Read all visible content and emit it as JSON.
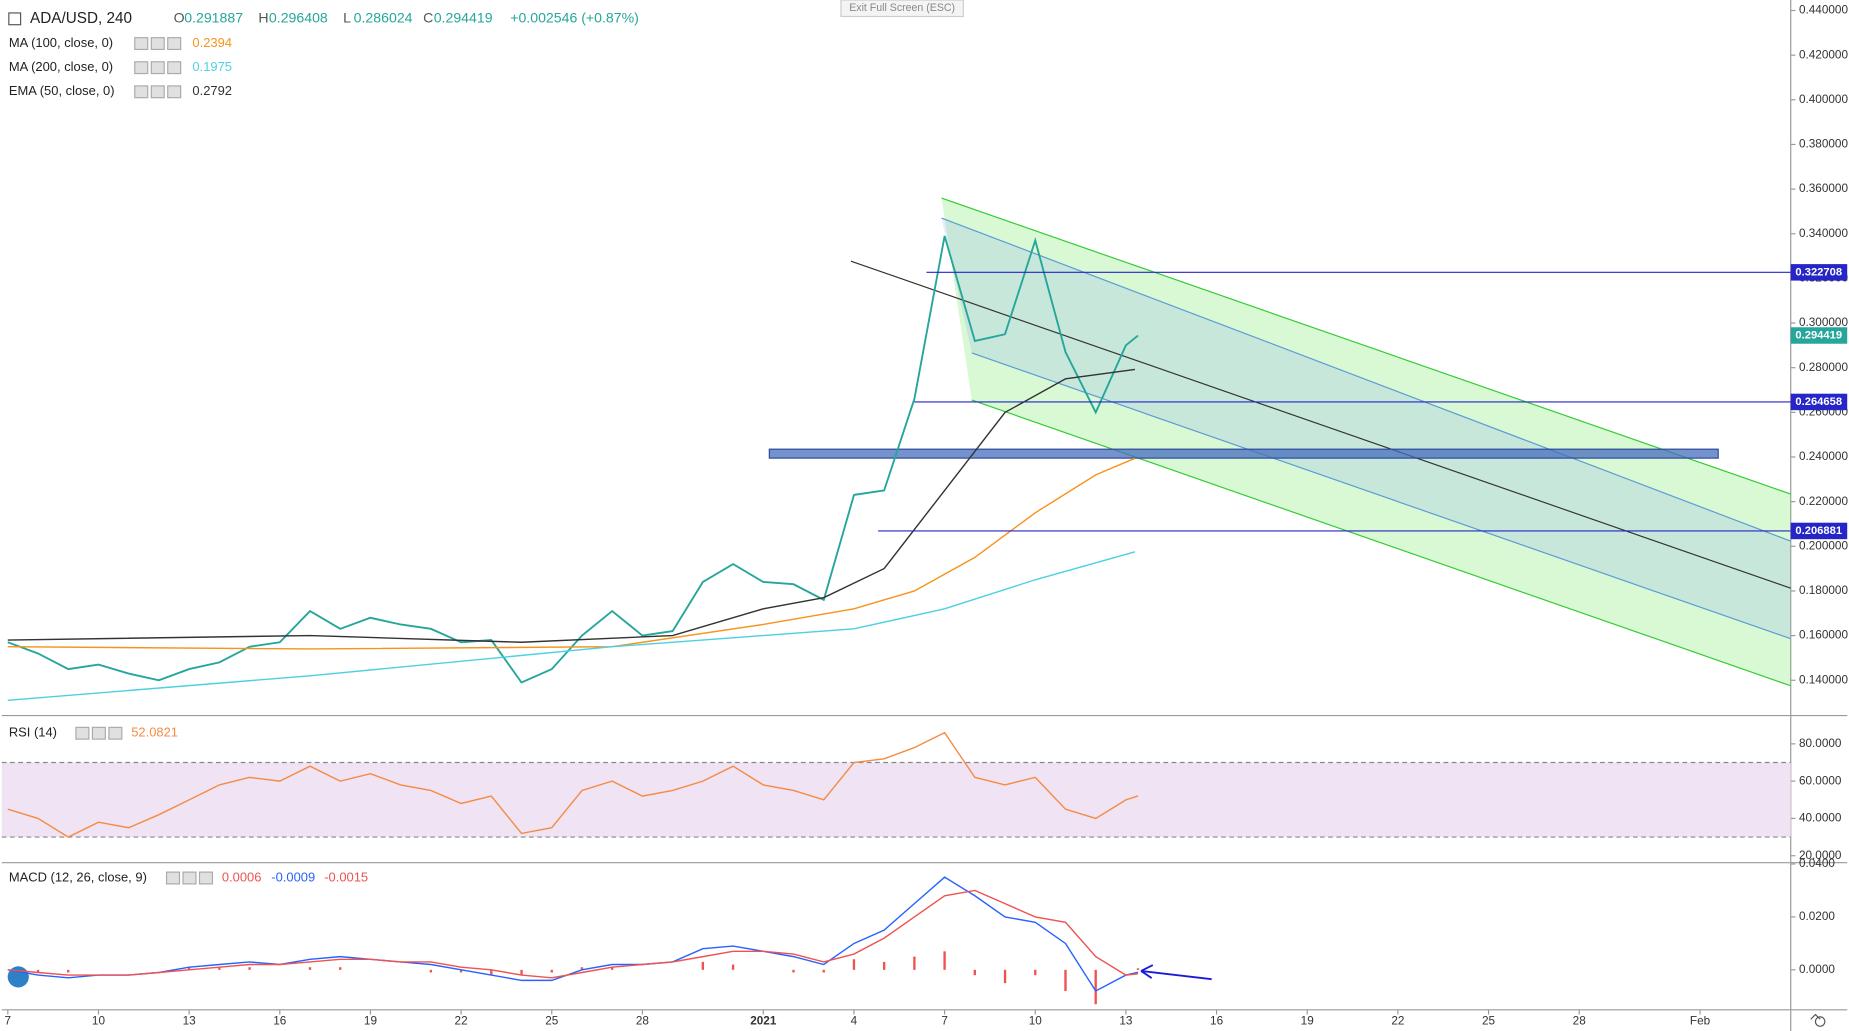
{
  "exit_button": "Exit Full Screen (ESC)",
  "chart_data": [
    {
      "type": "line",
      "header": {
        "symbol": "ADA/USD, 240",
        "ohlc": [
          {
            "label": "O",
            "value": 0.291887
          },
          {
            "label": "H",
            "value": 0.296408
          },
          {
            "label": "L",
            "value": 0.286024
          },
          {
            "label": "C",
            "value": 0.294419
          }
        ],
        "change": "+0.002546 (+0.87%)"
      },
      "xlim": [
        -0.2,
        59
      ],
      "xticks": [
        {
          "value": 0,
          "label": "7"
        },
        {
          "value": 3,
          "label": "10"
        },
        {
          "value": 6,
          "label": "13"
        },
        {
          "value": 9,
          "label": "16"
        },
        {
          "value": 12,
          "label": "19"
        },
        {
          "value": 15,
          "label": "22"
        },
        {
          "value": 18,
          "label": "25"
        },
        {
          "value": 21,
          "label": "28"
        },
        {
          "value": 25,
          "label": "2021"
        },
        {
          "value": 28,
          "label": "4"
        },
        {
          "value": 31,
          "label": "7"
        },
        {
          "value": 34,
          "label": "10"
        },
        {
          "value": 37,
          "label": "13"
        },
        {
          "value": 40,
          "label": "16"
        },
        {
          "value": 43,
          "label": "19"
        },
        {
          "value": 46,
          "label": "22"
        },
        {
          "value": 49,
          "label": "25"
        },
        {
          "value": 52,
          "label": "28"
        },
        {
          "value": 56,
          "label": "Feb"
        }
      ],
      "ylim": [
        0.1247,
        0.4447
      ],
      "yticks": [
        {
          "value": 0.14,
          "label": "0.140000"
        },
        {
          "value": 0.16,
          "label": "0.160000"
        },
        {
          "value": 0.18,
          "label": "0.180000"
        },
        {
          "value": 0.2,
          "label": "0.200000"
        },
        {
          "value": 0.22,
          "label": "0.220000"
        },
        {
          "value": 0.24,
          "label": "0.240000"
        },
        {
          "value": 0.26,
          "label": "0.260000"
        },
        {
          "value": 0.28,
          "label": "0.280000"
        },
        {
          "value": 0.3,
          "label": "0.300000"
        },
        {
          "value": 0.32,
          "label": "0.320000"
        },
        {
          "value": 0.34,
          "label": "0.340000"
        },
        {
          "value": 0.36,
          "label": "0.360000"
        },
        {
          "value": 0.38,
          "label": "0.380000"
        },
        {
          "value": 0.4,
          "label": "0.400000"
        },
        {
          "value": 0.42,
          "label": "0.420000"
        },
        {
          "value": 0.44,
          "label": "0.440000"
        }
      ],
      "series": [
        {
          "color": "#26a69a",
          "x": [
            0,
            1,
            2,
            3,
            4,
            5,
            6,
            7,
            8,
            9,
            10,
            11,
            12,
            13,
            14,
            15,
            16,
            17,
            18,
            19,
            20,
            21,
            22,
            23,
            24,
            25,
            26,
            27,
            28,
            29,
            30,
            31,
            32,
            33,
            34,
            35,
            36,
            37,
            37.4
          ],
          "values": [
            0.157,
            0.152,
            0.145,
            0.147,
            0.143,
            0.14,
            0.145,
            0.148,
            0.155,
            0.157,
            0.171,
            0.163,
            0.168,
            0.165,
            0.163,
            0.157,
            0.158,
            0.139,
            0.145,
            0.16,
            0.171,
            0.16,
            0.162,
            0.184,
            0.192,
            0.184,
            0.183,
            0.176,
            0.223,
            0.225,
            0.266,
            0.339,
            0.292,
            0.295,
            0.337,
            0.287,
            0.26,
            0.29,
            0.294419
          ]
        },
        {
          "name": "MA (100, close, 0)",
          "color": "#f7931a",
          "x": [
            0,
            10,
            20,
            25,
            28,
            30,
            32,
            34,
            36,
            37.3
          ],
          "values": [
            0.155,
            0.154,
            0.155,
            0.165,
            0.172,
            0.18,
            0.195,
            0.215,
            0.232,
            0.2394
          ]
        },
        {
          "name": "MA (200, close, 0)",
          "color": "#4dd0e1",
          "x": [
            0,
            10,
            20,
            25,
            28,
            31,
            34,
            37.3
          ],
          "values": [
            0.131,
            0.142,
            0.155,
            0.16,
            0.163,
            0.172,
            0.185,
            0.1975
          ]
        },
        {
          "name": "EMA (50, close, 0)",
          "color": "#333333",
          "x": [
            0,
            10,
            17,
            22,
            25,
            27,
            29,
            31,
            33,
            35,
            37.3
          ],
          "values": [
            0.158,
            0.16,
            0.157,
            0.16,
            0.172,
            0.177,
            0.19,
            0.225,
            0.26,
            0.275,
            0.2792
          ]
        }
      ],
      "levels": [
        {
          "value": 0.322708,
          "x": 30.4
        },
        {
          "value": 0.264658,
          "x": 30
        },
        {
          "value": 0.206881,
          "x": 28.8
        }
      ],
      "zone": {
        "x": [
          25.2,
          56.6
        ],
        "values": [
          0.2435,
          0.2395
        ]
      },
      "trendlines": [
        {
          "color": "#333333",
          "x": [
            27.9,
            59
          ],
          "values": [
            0.3277,
            0.1812
          ]
        },
        {
          "color": "#33cc33",
          "x": [
            30.9,
            59
          ],
          "values": [
            0.356,
            0.2234
          ]
        },
        {
          "color": "#33cc33",
          "x": [
            31.9,
            59
          ],
          "values": [
            0.2655,
            0.1375
          ]
        },
        {
          "color": "#5b9bd5",
          "x": [
            30.9,
            59
          ],
          "values": [
            0.347,
            0.2023
          ]
        },
        {
          "color": "#5b9bd5",
          "x": [
            31.9,
            59
          ],
          "values": [
            0.2866,
            0.1586
          ]
        }
      ]
    },
    {
      "type": "line",
      "title": "RSI (14)",
      "ylim": [
        16.9,
        93.9
      ],
      "yticks": [
        {
          "value": 20,
          "label": "20.0000"
        },
        {
          "value": 40,
          "label": "40.0000"
        },
        {
          "value": 60,
          "label": "60.0000"
        },
        {
          "value": 80,
          "label": "80.0000"
        }
      ],
      "band": [
        30,
        70
      ],
      "series": [
        {
          "color": "#f48b45",
          "x": [
            0,
            1,
            2,
            3,
            4,
            5,
            6,
            7,
            8,
            9,
            10,
            11,
            12,
            13,
            14,
            15,
            16,
            17,
            18,
            19,
            20,
            21,
            22,
            23,
            24,
            25,
            26,
            27,
            28,
            29,
            30,
            31,
            32,
            33,
            34,
            35,
            36,
            37,
            37.4
          ],
          "values": [
            45,
            40,
            30,
            38,
            35,
            42,
            50,
            58,
            62,
            60,
            68,
            60,
            64,
            58,
            55,
            48,
            52,
            32,
            35,
            55,
            60,
            52,
            55,
            60,
            68,
            58,
            55,
            50,
            70,
            72,
            78,
            86,
            62,
            58,
            62,
            45,
            40,
            50,
            52.0821
          ]
        }
      ]
    },
    {
      "type": "line",
      "title": "MACD (12, 26, close, 9)",
      "ylim": [
        -0.0151,
        0.0396
      ],
      "yticks": [
        {
          "value": 0,
          "label": "0.0000"
        },
        {
          "value": 0.02,
          "label": "0.0200"
        },
        {
          "value": 0.04,
          "label": "0.0400"
        }
      ],
      "series": [
        {
          "type": "bar",
          "color": "#ef5350",
          "x": [
            0,
            1,
            2,
            3,
            4,
            5,
            6,
            7,
            8,
            9,
            10,
            11,
            12,
            13,
            14,
            15,
            16,
            17,
            18,
            19,
            20,
            21,
            22,
            23,
            24,
            25,
            26,
            27,
            28,
            29,
            30,
            31,
            32,
            33,
            34,
            35,
            36,
            37,
            37.4
          ],
          "values": [
            0,
            -0.001,
            -0.001,
            0,
            0,
            0,
            0.001,
            0.001,
            0.001,
            0,
            0.001,
            0.001,
            0,
            0,
            -0.001,
            -0.001,
            -0.002,
            -0.002,
            -0.001,
            0.001,
            0.001,
            0,
            0,
            0.003,
            0.002,
            0,
            -0.001,
            -0.001,
            0.004,
            0.003,
            0.005,
            0.007,
            -0.002,
            -0.005,
            -0.002,
            -0.008,
            -0.013,
            0,
            0.0006
          ]
        },
        {
          "color": "#2962ff",
          "x": [
            0,
            1,
            2,
            3,
            4,
            5,
            6,
            7,
            8,
            9,
            10,
            11,
            12,
            13,
            14,
            15,
            16,
            17,
            18,
            19,
            20,
            21,
            22,
            23,
            24,
            25,
            26,
            27,
            28,
            29,
            30,
            31,
            32,
            33,
            34,
            35,
            36,
            37,
            37.4
          ],
          "values": [
            0,
            -0.002,
            -0.003,
            -0.002,
            -0.002,
            -0.001,
            0.001,
            0.002,
            0.003,
            0.002,
            0.004,
            0.005,
            0.004,
            0.003,
            0.002,
            0,
            -0.002,
            -0.004,
            -0.004,
            0,
            0.002,
            0.002,
            0.003,
            0.008,
            0.009,
            0.007,
            0.005,
            0.002,
            0.01,
            0.015,
            0.025,
            0.035,
            0.028,
            0.02,
            0.018,
            0.01,
            -0.008,
            -0.002,
            -0.0009
          ]
        },
        {
          "color": "#ef5350",
          "x": [
            0,
            1,
            2,
            3,
            4,
            5,
            6,
            7,
            8,
            9,
            10,
            11,
            12,
            13,
            14,
            15,
            16,
            17,
            18,
            19,
            20,
            21,
            22,
            23,
            24,
            25,
            26,
            27,
            28,
            29,
            30,
            31,
            32,
            33,
            34,
            35,
            36,
            37,
            37.4
          ],
          "values": [
            0,
            -0.001,
            -0.002,
            -0.002,
            -0.002,
            -0.001,
            0,
            0.001,
            0.002,
            0.002,
            0.003,
            0.004,
            0.004,
            0.003,
            0.003,
            0.001,
            0,
            -0.002,
            -0.003,
            -0.001,
            0.001,
            0.002,
            0.003,
            0.005,
            0.007,
            0.007,
            0.006,
            0.003,
            0.006,
            0.012,
            0.02,
            0.028,
            0.03,
            0.025,
            0.02,
            0.018,
            0.005,
            -0.002,
            -0.0015
          ]
        }
      ]
    }
  ]
}
